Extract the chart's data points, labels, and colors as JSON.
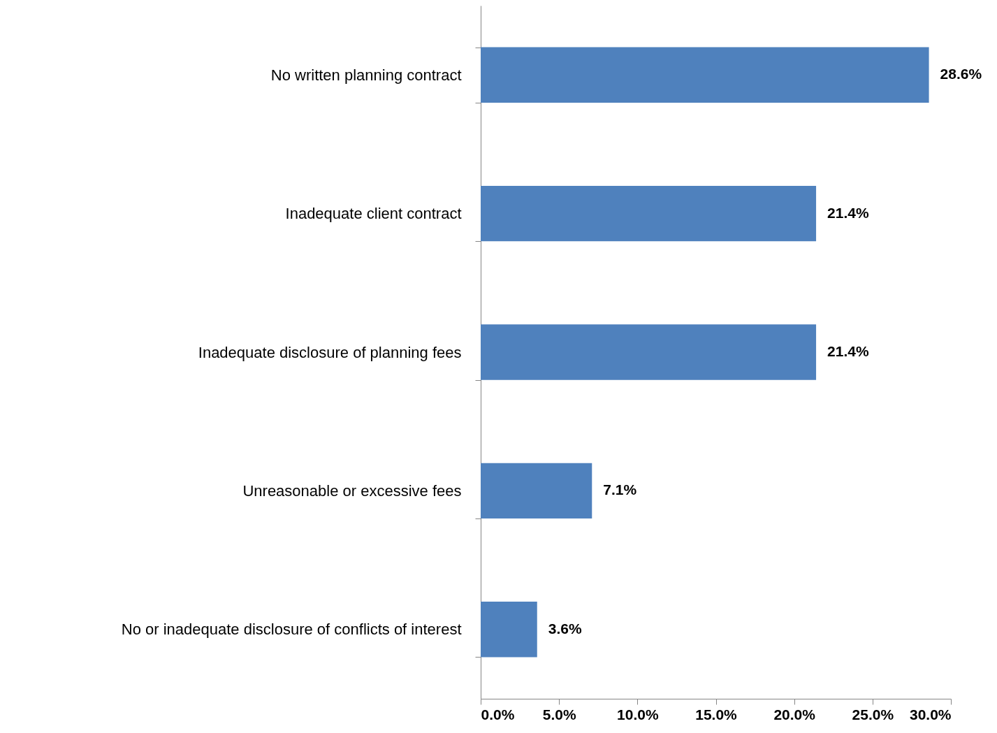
{
  "chart_data": {
    "type": "bar",
    "orientation": "horizontal",
    "categories": [
      "No written planning contract",
      "Inadequate client contract",
      "Inadequate disclosure of planning fees",
      "Unreasonable or excessive fees",
      "No or inadequate disclosure of conflicts of interest"
    ],
    "values": [
      28.6,
      21.4,
      21.4,
      7.1,
      3.6
    ],
    "value_labels": [
      "28.6%",
      "21.4%",
      "21.4%",
      "7.1%",
      "3.6%"
    ],
    "color": "#4f81bd",
    "xlim": [
      0,
      30
    ],
    "xticks": [
      {
        "value": 0,
        "label": "0.0%"
      },
      {
        "value": 5,
        "label": "5.0%"
      },
      {
        "value": 10,
        "label": "10.0%"
      },
      {
        "value": 15,
        "label": "15.0%"
      },
      {
        "value": 20,
        "label": "20.0%"
      },
      {
        "value": 25,
        "label": "25.0%"
      },
      {
        "value": 30,
        "label": "30.0%"
      }
    ]
  }
}
